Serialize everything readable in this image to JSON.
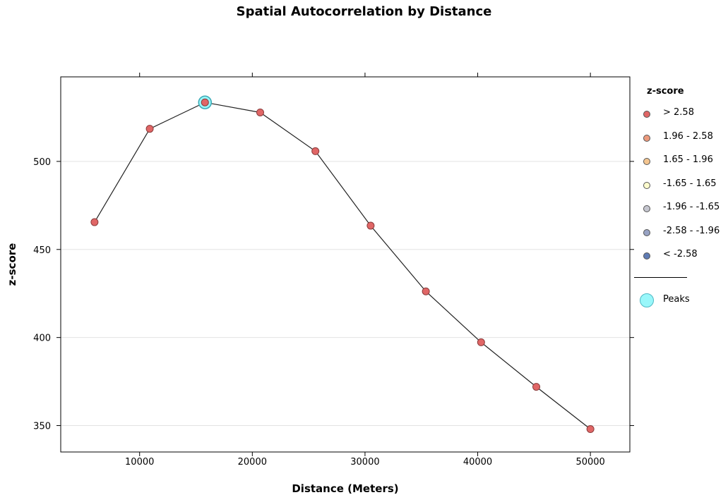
{
  "chart_data": {
    "type": "line",
    "title": "Spatial Autocorrelation by Distance",
    "xlabel": "Distance (Meters)",
    "ylabel": "z-score",
    "xlim": [
      3000,
      53500
    ],
    "ylim": [
      335,
      548
    ],
    "x_ticks": [
      10000,
      20000,
      30000,
      40000,
      50000
    ],
    "x_tick_labels": [
      "10000",
      "20000",
      "30000",
      "40000",
      "50000"
    ],
    "y_ticks": [
      350,
      400,
      450,
      500
    ],
    "y_tick_labels": [
      "350",
      "400",
      "450",
      "500"
    ],
    "grid": "horizontal",
    "legend_placement": "right",
    "series": [
      {
        "x": [
          6000,
          10900,
          15800,
          20700,
          25600,
          30500,
          35400,
          40300,
          45200,
          50000
        ],
        "y": [
          465.5,
          518.5,
          533.5,
          527.8,
          505.8,
          463.5,
          426.2,
          397.3,
          372.0,
          348.0
        ],
        "color": "#e06666",
        "line_color": "#222222"
      }
    ],
    "peaks": [
      {
        "x": 15800,
        "y": 533.5
      }
    ]
  },
  "legend": {
    "title": "z-score",
    "items": [
      {
        "label": "> 2.58",
        "color": "#e06666"
      },
      {
        "label": "1.96 - 2.58",
        "color": "#ec9a7c"
      },
      {
        "label": "1.65 - 1.96",
        "color": "#f4c590"
      },
      {
        "label": "-1.65 - 1.65",
        "color": "#fdfccd"
      },
      {
        "label": "-1.96 - -1.65",
        "color": "#c5c6cf"
      },
      {
        "label": "-2.58 - -1.96",
        "color": "#98a3c4"
      },
      {
        "label": "< -2.58",
        "color": "#5f7cb4"
      }
    ],
    "peaks_label": "Peaks",
    "peaks_color": "#99f7fa"
  }
}
